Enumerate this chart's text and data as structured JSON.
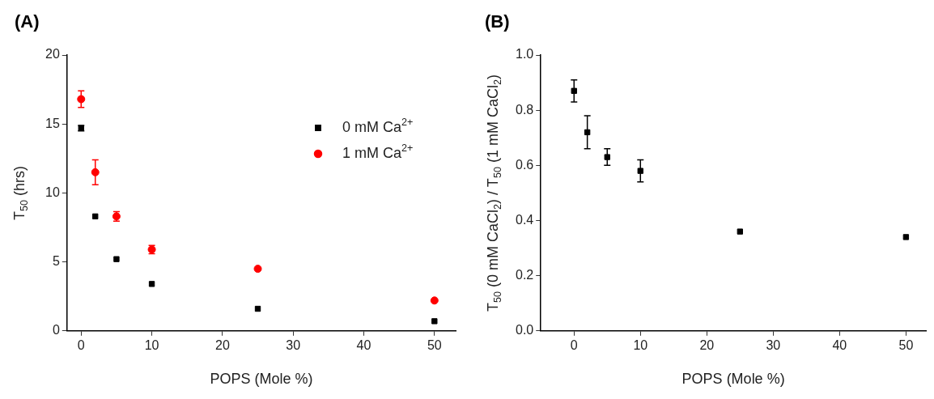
{
  "chart_data": [
    {
      "type": "scatter",
      "title": "(A)",
      "xlabel": "POPS (Mole %)",
      "ylabel": "T$_{50}$ (hrs)",
      "x": [
        0,
        2,
        5,
        10,
        25,
        50
      ],
      "series": [
        {
          "name": "0 mM Ca$^{2+}$",
          "color": "#000000",
          "marker": "square",
          "values": [
            14.7,
            8.3,
            5.2,
            3.4,
            1.6,
            0.7
          ],
          "errors": [
            0.2,
            null,
            null,
            null,
            null,
            null
          ]
        },
        {
          "name": "1 mM Ca$^{2+}$",
          "color": "#ff0000",
          "marker": "circle",
          "values": [
            16.8,
            11.5,
            8.3,
            5.9,
            4.5,
            2.2
          ],
          "errors": [
            0.6,
            0.9,
            0.35,
            0.3,
            null,
            null
          ]
        }
      ],
      "xlim": [
        -2,
        53
      ],
      "xticks": [
        0,
        10,
        20,
        30,
        40,
        50
      ],
      "ylim": [
        0,
        20
      ],
      "yticks": [
        0,
        5,
        10,
        15,
        20
      ],
      "grid": false,
      "legend": "top right"
    },
    {
      "type": "scatter",
      "title": "(B)",
      "xlabel": "POPS (Mole %)",
      "ylabel": "T$_{50}$ (0 mM CaCl$_{2}$) / T$_{50}$ (1 mM CaCl$_{2}$)",
      "x": [
        0,
        2,
        5,
        10,
        25,
        50
      ],
      "series": [
        {
          "color": "#000000",
          "marker": "square",
          "values": [
            0.87,
            0.72,
            0.63,
            0.58,
            0.36,
            0.34
          ],
          "errors": [
            0.04,
            0.06,
            0.03,
            0.04,
            null,
            null
          ]
        }
      ],
      "xlim": [
        -5,
        53
      ],
      "xticks": [
        0,
        10,
        20,
        30,
        40,
        50
      ],
      "ylim": [
        0,
        1
      ],
      "yticks": [
        {
          "value": 0,
          "label": "0.0"
        },
        0.2,
        0.4,
        0.6,
        0.8,
        {
          "value": 1,
          "label": "1.0"
        }
      ],
      "grid": false,
      "legend": false
    }
  ]
}
